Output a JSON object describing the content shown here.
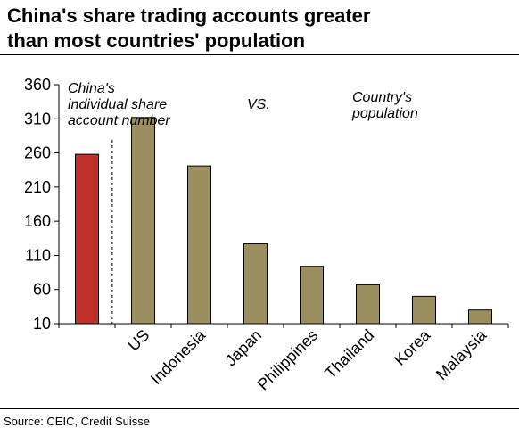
{
  "title": {
    "line1": "China's share trading accounts greater",
    "line2": "than most countries' population"
  },
  "source": "Source: CEIC, Credit Suisse",
  "colors": {
    "china_bar": "#c0302a",
    "country_bar": "#9b8f60",
    "bar_outline": "#000000"
  },
  "chart_data": {
    "type": "bar",
    "title": "China's share trading accounts greater than most countries' population",
    "categories": [
      "",
      "US",
      "Indonesia",
      "Japan",
      "Philippines",
      "Thailand",
      "Korea",
      "Malaysia"
    ],
    "values": [
      258,
      312,
      241,
      127,
      94,
      67,
      50,
      30
    ],
    "ylim": [
      10,
      360
    ],
    "yticks": [
      10,
      60,
      110,
      160,
      210,
      260,
      310,
      360
    ],
    "xlabel": "",
    "ylabel": "",
    "grid": false,
    "annotations": {
      "china": [
        "China's",
        "individual share",
        "account number"
      ],
      "vs": "VS.",
      "population": [
        "Country's",
        "population"
      ]
    }
  }
}
